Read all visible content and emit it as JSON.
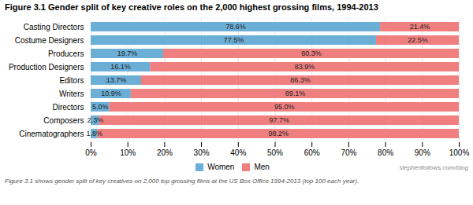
{
  "chart_data": {
    "type": "bar",
    "orientation": "horizontal",
    "stacked": true,
    "title": "Figure 3.1 Gender split of key creative roles on the 2,000 highest grossing films, 1994-2013",
    "caption": "Figure 3.1 shows gender split of key creatives on 2,000 top grossing films at the US Box Office 1994-2013 (top 100 each year).",
    "annotations": [
      "stephenfollows.com/blog"
    ],
    "categories": [
      "Casting Directors",
      "Costume Designers",
      "Producers",
      "Production Designers",
      "Editors",
      "Writers",
      "Directors",
      "Composers",
      "Cinematographers"
    ],
    "series": [
      {
        "name": "Women",
        "color": "#6baed6",
        "values": [
          78.6,
          77.5,
          19.7,
          16.1,
          13.7,
          10.9,
          5.0,
          2.3,
          1.8
        ],
        "value_labels": [
          "78.6%",
          "77.5%",
          "19.7%",
          "16.1%",
          "13.7%",
          "10.9%",
          "5.0%",
          "2.3%",
          "1.8%"
        ]
      },
      {
        "name": "Men",
        "color": "#f08080",
        "values": [
          21.4,
          22.5,
          80.3,
          83.9,
          86.3,
          89.1,
          95.0,
          97.7,
          98.2
        ],
        "value_labels": [
          "21.4%",
          "22.5%",
          "80.3%",
          "83.9%",
          "86.3%",
          "89.1%",
          "95.0%",
          "97.7%",
          "98.2%"
        ]
      }
    ],
    "xlim": [
      0,
      100
    ],
    "xticks": [
      {
        "value": 0,
        "label": "0%"
      },
      {
        "value": 10,
        "label": "10%"
      },
      {
        "value": 20,
        "label": "20%"
      },
      {
        "value": 30,
        "label": "30%"
      },
      {
        "value": 40,
        "label": "40%"
      },
      {
        "value": 50,
        "label": "50%"
      },
      {
        "value": 60,
        "label": "60%"
      },
      {
        "value": 70,
        "label": "70%"
      },
      {
        "value": 80,
        "label": "80%"
      },
      {
        "value": 90,
        "label": "90%"
      },
      {
        "value": 100,
        "label": "100%"
      }
    ],
    "grid": true,
    "data_labels": true,
    "legend": "bottom"
  }
}
